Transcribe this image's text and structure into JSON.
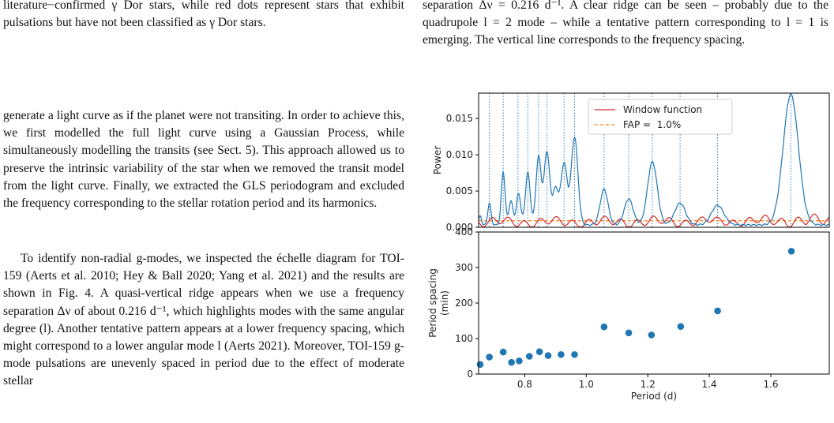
{
  "left_column": {
    "caption_tail": "literature−confirmed γ Dor stars, while red dots represent stars that exhibit pulsations but have not been classified as γ Dor stars.",
    "para1": "generate a light curve as if the planet were not transiting. In order to achieve this, we first modelled the full light curve using a Gaussian Process, while simultaneously modelling the transits (see Sect. 5). This approach allowed us to preserve the intrinsic variability of the star when we removed the transit model from the light curve. Finally, we extracted the GLS periodogram and excluded the frequency corresponding to the stellar rotation period and its harmonics.",
    "para2": "To identify non-radial g-modes, we inspected the échelle diagram for TOI-159 (Aerts et al. 2010; Hey & Ball 2020; Yang et al. 2021) and the results are shown in Fig. 4. A quasi-vertical ridge appears when we use a frequency separation Δν of about 0.216 d⁻¹, which highlights modes with the same angular degree (l). Another tentative pattern appears at a lower frequency spacing, which might correspond to a lower angular mode l (Aerts 2021). Moreover, TOI-159 g-mode pulsations are unevenly spaced in period due to the effect of moderate stellar"
  },
  "right_column": {
    "caption_tail": "separation Δν = 0.216 d⁻¹. A clear ridge can be seen – probably due to the quadrupole l = 2 mode – while a tentative pattern corresponding to l = 1 is emerging. The vertical line corresponds to the frequency spacing."
  },
  "colors": {
    "power": "#1f77b4",
    "window": "#d62728",
    "fap": "#ff7f0e",
    "points": "#1f77b4"
  },
  "chart_data": [
    {
      "type": "line",
      "ylabel": "Power",
      "xlim": [
        0.65,
        1.79
      ],
      "ylim": [
        0,
        0.0185
      ],
      "yticks": [
        "0.000",
        "0.005",
        "0.010",
        "0.015"
      ],
      "legend": {
        "placement": "top-center",
        "entries": [
          "Window function",
          "FAP =  1.0%"
        ]
      },
      "fap_level": 0.0009,
      "peaks": [
        {
          "period": 0.655,
          "power": 0.0012
        },
        {
          "period": 0.685,
          "power": 0.003
        },
        {
          "period": 0.73,
          "power": 0.0073
        },
        {
          "period": 0.755,
          "power": 0.0033
        },
        {
          "period": 0.78,
          "power": 0.0043
        },
        {
          "period": 0.81,
          "power": 0.0072
        },
        {
          "period": 0.845,
          "power": 0.0094
        },
        {
          "period": 0.872,
          "power": 0.0101
        },
        {
          "period": 0.9,
          "power": 0.005
        },
        {
          "period": 0.928,
          "power": 0.0085
        },
        {
          "period": 0.962,
          "power": 0.0121
        },
        {
          "period": 1.058,
          "power": 0.0049
        },
        {
          "period": 1.138,
          "power": 0.0036
        },
        {
          "period": 1.215,
          "power": 0.0087
        },
        {
          "period": 1.305,
          "power": 0.003
        },
        {
          "period": 1.427,
          "power": 0.0027
        },
        {
          "period": 1.665,
          "power": 0.018
        }
      ],
      "vertical_lines": [
        0.685,
        0.73,
        0.778,
        0.81,
        0.845,
        0.872,
        0.928,
        0.962,
        1.058,
        1.138,
        1.215,
        1.305,
        1.427,
        1.665
      ]
    },
    {
      "type": "scatter",
      "xlabel": "Period (d)",
      "ylabel": "Period spacing\n(min)",
      "xlim": [
        0.65,
        1.79
      ],
      "ylim": [
        0,
        400
      ],
      "xticks": [
        "0.8",
        "1.0",
        "1.2",
        "1.4",
        "1.6"
      ],
      "yticks": [
        "0",
        "100",
        "200",
        "300",
        "400"
      ],
      "points": [
        {
          "x": 0.655,
          "y": 27
        },
        {
          "x": 0.685,
          "y": 48
        },
        {
          "x": 0.73,
          "y": 62
        },
        {
          "x": 0.757,
          "y": 33
        },
        {
          "x": 0.782,
          "y": 37
        },
        {
          "x": 0.815,
          "y": 50
        },
        {
          "x": 0.848,
          "y": 63
        },
        {
          "x": 0.876,
          "y": 52
        },
        {
          "x": 0.918,
          "y": 55
        },
        {
          "x": 0.962,
          "y": 55
        },
        {
          "x": 1.058,
          "y": 133
        },
        {
          "x": 1.138,
          "y": 116
        },
        {
          "x": 1.212,
          "y": 110
        },
        {
          "x": 1.307,
          "y": 134
        },
        {
          "x": 1.427,
          "y": 178
        },
        {
          "x": 1.667,
          "y": 346
        }
      ]
    }
  ]
}
